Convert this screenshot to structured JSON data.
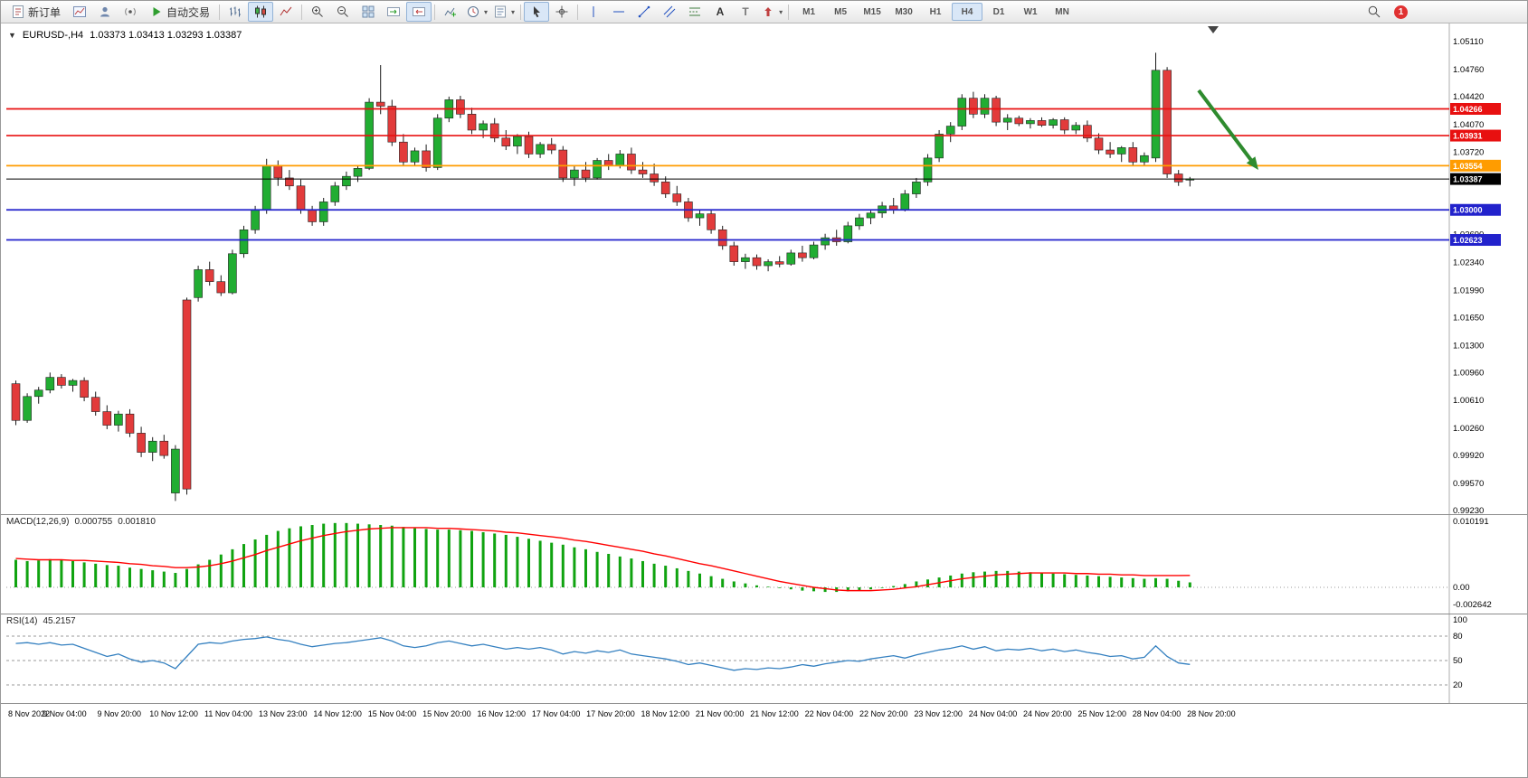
{
  "toolbar": {
    "new_order_label": "新订单",
    "autotrading_label": "自动交易",
    "timeframe_buttons": [
      "M1",
      "M5",
      "M15",
      "M30",
      "H1",
      "H4",
      "D1",
      "W1",
      "MN"
    ],
    "active_timeframe": "H4",
    "notification_badge": "1",
    "icon_glyphs": {
      "text_tool": "A",
      "text_label_tool": "T"
    },
    "icons": [
      "new-order",
      "new-chart",
      "profiles",
      "alerts",
      "autotrading",
      "bar-chart",
      "candlestick-chart",
      "line-chart",
      "zoom-in",
      "zoom-out",
      "tile-windows",
      "auto-scroll",
      "chart-shift",
      "indicators",
      "periods",
      "templates",
      "cursor",
      "crosshair",
      "vertical-line",
      "horizontal-line",
      "trendline",
      "equidistant-channel",
      "fibonacci",
      "text",
      "text-label",
      "arrows",
      "search"
    ]
  },
  "chart_header": {
    "symbol_period": "EURUSD-,H4",
    "ohlc": "1.03373 1.03413 1.03293 1.03387"
  },
  "indicators": {
    "macd": {
      "label": "MACD(12,26,9)",
      "value_main": "0.000755",
      "value_signal": "0.001810",
      "scale": [
        "0.010191",
        "0.00",
        "-0.002642"
      ]
    },
    "rsi": {
      "label": "RSI(14)",
      "value": "45.2157",
      "scale": [
        "100",
        "80",
        "50",
        "20"
      ]
    }
  },
  "chart_data": {
    "type": "candlestick",
    "symbol": "EURUSD",
    "timeframe": "H4",
    "price_axis": {
      "max": 1.0511,
      "min": 0.9923,
      "labels": [
        "1.05110",
        "1.04760",
        "1.04420",
        "1.04070",
        "1.03720",
        "1.03380",
        "1.03030",
        "1.02690",
        "1.02340",
        "1.01990",
        "1.01650",
        "1.01300",
        "1.00960",
        "1.00610",
        "1.00260",
        "0.99920",
        "0.99570",
        "0.99230"
      ]
    },
    "time_labels": [
      "8 Nov 2022",
      "9 Nov 04:00",
      "9 Nov 20:00",
      "10 Nov 12:00",
      "11 Nov 04:00",
      "13 Nov 23:00",
      "14 Nov 12:00",
      "15 Nov 04:00",
      "15 Nov 20:00",
      "16 Nov 12:00",
      "17 Nov 04:00",
      "17 Nov 20:00",
      "18 Nov 12:00",
      "21 Nov 00:00",
      "21 Nov 12:00",
      "22 Nov 04:00",
      "22 Nov 20:00",
      "23 Nov 12:00",
      "24 Nov 04:00",
      "24 Nov 20:00",
      "25 Nov 12:00",
      "28 Nov 04:00",
      "28 Nov 20:00"
    ],
    "colors": {
      "up": "#21ad32",
      "down": "#e23b3b",
      "wick": "#1a1a1a",
      "macd_hist": "#10a310",
      "macd_signal": "#ff0000",
      "rsi_line": "#3480c0",
      "resistance": "#e81010",
      "pivot": "#ff9c00",
      "support": "#2222cc"
    },
    "hlines": [
      {
        "price": 1.04266,
        "label": "1.04266",
        "color": "#e81010"
      },
      {
        "price": 1.03931,
        "label": "1.03931",
        "color": "#e81010"
      },
      {
        "price": 1.03554,
        "label": "1.03554",
        "color": "#ff9c00"
      },
      {
        "price": 1.03,
        "label": "1.03000",
        "color": "#2222cc"
      },
      {
        "price": 1.02623,
        "label": "1.02623",
        "color": "#2222cc"
      }
    ],
    "current_price": {
      "price": 1.03387,
      "label": "1.03387",
      "color": "#000000"
    },
    "candles": [
      [
        1.0082,
        1.0086,
        1.003,
        1.0036
      ],
      [
        1.0036,
        1.007,
        1.0033,
        1.0066
      ],
      [
        1.0066,
        1.0078,
        1.0057,
        1.0074
      ],
      [
        1.0074,
        1.0096,
        1.007,
        1.009
      ],
      [
        1.009,
        1.0094,
        1.0076,
        1.008
      ],
      [
        1.008,
        1.0088,
        1.0072,
        1.0086
      ],
      [
        1.0086,
        1.009,
        1.006,
        1.0065
      ],
      [
        1.0065,
        1.0072,
        1.0042,
        1.0047
      ],
      [
        1.0047,
        1.0055,
        1.0025,
        1.003
      ],
      [
        1.003,
        1.0048,
        1.0022,
        1.0044
      ],
      [
        1.0044,
        1.005,
        1.0015,
        1.002
      ],
      [
        1.002,
        1.0028,
        0.999,
        0.9996
      ],
      [
        0.9996,
        1.0015,
        0.9985,
        1.001
      ],
      [
        1.001,
        1.0018,
        0.9988,
        0.9992
      ],
      [
        0.9945,
        1.0005,
        0.9935,
        1.0
      ],
      [
        1.0187,
        1.019,
        0.9943,
        0.995
      ],
      [
        1.019,
        1.023,
        1.0185,
        1.0225
      ],
      [
        1.0225,
        1.0235,
        1.0205,
        1.021
      ],
      [
        1.021,
        1.0218,
        1.0192,
        1.0196
      ],
      [
        1.0196,
        1.025,
        1.0194,
        1.0245
      ],
      [
        1.0245,
        1.028,
        1.024,
        1.0275
      ],
      [
        1.0275,
        1.0305,
        1.027,
        1.03
      ],
      [
        1.03,
        1.0364,
        1.0295,
        1.0355
      ],
      [
        1.0355,
        1.0362,
        1.033,
        1.034
      ],
      [
        1.034,
        1.035,
        1.0325,
        1.033
      ],
      [
        1.033,
        1.0338,
        1.0295,
        1.03
      ],
      [
        1.03,
        1.0305,
        1.028,
        1.0285
      ],
      [
        1.0285,
        1.0315,
        1.028,
        1.031
      ],
      [
        1.031,
        1.0335,
        1.0305,
        1.033
      ],
      [
        1.033,
        1.0348,
        1.0325,
        1.0342
      ],
      [
        1.0342,
        1.0356,
        1.0335,
        1.0352
      ],
      [
        1.0352,
        1.044,
        1.035,
        1.0435
      ],
      [
        1.0435,
        1.04815,
        1.042,
        1.043
      ],
      [
        1.043,
        1.0438,
        1.038,
        1.0385
      ],
      [
        1.0385,
        1.0395,
        1.0355,
        1.036
      ],
      [
        1.036,
        1.0378,
        1.0356,
        1.0374
      ],
      [
        1.0374,
        1.0382,
        1.0348,
        1.0353
      ],
      [
        1.0353,
        1.042,
        1.035,
        1.0415
      ],
      [
        1.0415,
        1.0442,
        1.041,
        1.0438
      ],
      [
        1.0438,
        1.0443,
        1.0415,
        1.042
      ],
      [
        1.042,
        1.0428,
        1.0395,
        1.04
      ],
      [
        1.04,
        1.0412,
        1.039,
        1.0408
      ],
      [
        1.0408,
        1.0415,
        1.0385,
        1.039
      ],
      [
        1.039,
        1.04,
        1.0375,
        1.038
      ],
      [
        1.038,
        1.0395,
        1.037,
        1.0392
      ],
      [
        1.0392,
        1.0398,
        1.0365,
        1.037
      ],
      [
        1.037,
        1.0385,
        1.0365,
        1.0382
      ],
      [
        1.0382,
        1.039,
        1.037,
        1.0375
      ],
      [
        1.0375,
        1.038,
        1.0335,
        1.034
      ],
      [
        1.034,
        1.0355,
        1.033,
        1.035
      ],
      [
        1.035,
        1.036,
        1.0335,
        1.034
      ],
      [
        1.034,
        1.0365,
        1.0338,
        1.0362
      ],
      [
        1.0362,
        1.037,
        1.035,
        1.0355
      ],
      [
        1.0355,
        1.0375,
        1.0352,
        1.037
      ],
      [
        1.037,
        1.0378,
        1.0345,
        1.035
      ],
      [
        1.035,
        1.036,
        1.034,
        1.0345
      ],
      [
        1.0345,
        1.0358,
        1.033,
        1.0335
      ],
      [
        1.0335,
        1.0342,
        1.0315,
        1.032
      ],
      [
        1.032,
        1.033,
        1.0305,
        1.031
      ],
      [
        1.031,
        1.0315,
        1.0285,
        1.029
      ],
      [
        1.029,
        1.03,
        1.028,
        1.0295
      ],
      [
        1.0295,
        1.03,
        1.027,
        1.0275
      ],
      [
        1.0275,
        1.028,
        1.025,
        1.0255
      ],
      [
        1.0255,
        1.026,
        1.023,
        1.0235
      ],
      [
        1.0235,
        1.0245,
        1.0226,
        1.024
      ],
      [
        1.024,
        1.0244,
        1.0225,
        1.023
      ],
      [
        1.023,
        1.0238,
        1.0223,
        1.0235
      ],
      [
        1.0235,
        1.0242,
        1.0228,
        1.0232
      ],
      [
        1.0232,
        1.025,
        1.023,
        1.0246
      ],
      [
        1.0246,
        1.0255,
        1.0235,
        1.024
      ],
      [
        1.024,
        1.026,
        1.0238,
        1.0256
      ],
      [
        1.0256,
        1.027,
        1.025,
        1.0265
      ],
      [
        1.0265,
        1.0275,
        1.0255,
        1.026
      ],
      [
        1.026,
        1.0285,
        1.0258,
        1.028
      ],
      [
        1.028,
        1.0295,
        1.0275,
        1.029
      ],
      [
        1.029,
        1.03,
        1.0282,
        1.0296
      ],
      [
        1.0296,
        1.031,
        1.029,
        1.0305
      ],
      [
        1.0305,
        1.0315,
        1.0295,
        1.03
      ],
      [
        1.03,
        1.0325,
        1.0298,
        1.032
      ],
      [
        1.032,
        1.034,
        1.0315,
        1.0335
      ],
      [
        1.0335,
        1.037,
        1.033,
        1.0365
      ],
      [
        1.0365,
        1.04,
        1.036,
        1.0395
      ],
      [
        1.0395,
        1.041,
        1.0385,
        1.0405
      ],
      [
        1.0405,
        1.0445,
        1.04,
        1.044
      ],
      [
        1.044,
        1.0448,
        1.0415,
        1.042
      ],
      [
        1.042,
        1.0445,
        1.0415,
        1.044
      ],
      [
        1.044,
        1.0443,
        1.0405,
        1.041
      ],
      [
        1.041,
        1.042,
        1.04,
        1.0415
      ],
      [
        1.0415,
        1.0418,
        1.0405,
        1.0408
      ],
      [
        1.0408,
        1.0415,
        1.0402,
        1.0412
      ],
      [
        1.0412,
        1.0416,
        1.0404,
        1.0406
      ],
      [
        1.0406,
        1.0415,
        1.0402,
        1.0413
      ],
      [
        1.0413,
        1.0416,
        1.0395,
        1.04
      ],
      [
        1.04,
        1.041,
        1.0395,
        1.0406
      ],
      [
        1.0406,
        1.0412,
        1.0385,
        1.039
      ],
      [
        1.039,
        1.0396,
        1.037,
        1.0375
      ],
      [
        1.0375,
        1.0385,
        1.0365,
        1.037
      ],
      [
        1.037,
        1.038,
        1.036,
        1.0378
      ],
      [
        1.0378,
        1.0385,
        1.0355,
        1.036
      ],
      [
        1.036,
        1.0372,
        1.0355,
        1.0368
      ],
      [
        1.0365,
        1.0497,
        1.036,
        1.0475
      ],
      [
        1.0475,
        1.0479,
        1.034,
        1.0345
      ],
      [
        1.0345,
        1.035,
        1.033,
        1.0335
      ],
      [
        1.03373,
        1.03413,
        1.03293,
        1.03387
      ]
    ],
    "macd": {
      "max": 0.010191,
      "min": -0.002642,
      "histogram": [
        0.0042,
        0.004,
        0.0041,
        0.0043,
        0.0042,
        0.004,
        0.0038,
        0.0036,
        0.0034,
        0.0033,
        0.003,
        0.0028,
        0.0026,
        0.0024,
        0.0022,
        0.0028,
        0.0035,
        0.0042,
        0.005,
        0.0058,
        0.0066,
        0.0073,
        0.008,
        0.0086,
        0.009,
        0.0093,
        0.0095,
        0.0097,
        0.0098,
        0.0098,
        0.0097,
        0.0096,
        0.0095,
        0.0094,
        0.0092,
        0.009,
        0.0089,
        0.0088,
        0.0088,
        0.0087,
        0.0086,
        0.0084,
        0.0082,
        0.008,
        0.0077,
        0.0074,
        0.0071,
        0.0068,
        0.0065,
        0.0061,
        0.0058,
        0.0054,
        0.0051,
        0.0047,
        0.0044,
        0.004,
        0.0036,
        0.0033,
        0.0029,
        0.0025,
        0.0021,
        0.0017,
        0.0013,
        0.0009,
        0.0006,
        0.0003,
        0.0001,
        -0.0001,
        -0.0003,
        -0.0005,
        -0.0006,
        -0.0007,
        -0.0007,
        -0.0006,
        -0.0005,
        -0.0003,
        -0.0001,
        0.0002,
        0.0005,
        0.0009,
        0.0012,
        0.0015,
        0.0018,
        0.0021,
        0.0023,
        0.0024,
        0.0025,
        0.0025,
        0.0024,
        0.0023,
        0.0022,
        0.0021,
        0.002,
        0.0019,
        0.0018,
        0.0017,
        0.0016,
        0.0015,
        0.0014,
        0.0013,
        0.0014,
        0.0013,
        0.001,
        0.000755
      ],
      "signal": [
        0.0044,
        0.0043,
        0.0042,
        0.0042,
        0.0042,
        0.0041,
        0.0041,
        0.004,
        0.0039,
        0.0038,
        0.0036,
        0.0035,
        0.0033,
        0.0032,
        0.003,
        0.003,
        0.0031,
        0.0033,
        0.0036,
        0.004,
        0.0045,
        0.005,
        0.0056,
        0.0061,
        0.0066,
        0.0071,
        0.0075,
        0.0079,
        0.0082,
        0.0085,
        0.0087,
        0.0089,
        0.009,
        0.0091,
        0.0091,
        0.0091,
        0.0091,
        0.009,
        0.009,
        0.0089,
        0.0088,
        0.0087,
        0.0086,
        0.0084,
        0.0083,
        0.0081,
        0.0079,
        0.0077,
        0.0075,
        0.0072,
        0.007,
        0.0067,
        0.0064,
        0.0061,
        0.0058,
        0.0055,
        0.0051,
        0.0048,
        0.0044,
        0.004,
        0.0036,
        0.0033,
        0.0029,
        0.0025,
        0.0021,
        0.0017,
        0.0013,
        0.0009,
        0.0006,
        0.0003,
        0.0,
        -0.0002,
        -0.0004,
        -0.0005,
        -0.0005,
        -0.0005,
        -0.0004,
        -0.0003,
        -0.0001,
        0.0001,
        0.0004,
        0.0007,
        0.001,
        0.0013,
        0.0015,
        0.0017,
        0.0019,
        0.002,
        0.0021,
        0.0022,
        0.0022,
        0.0022,
        0.0022,
        0.0021,
        0.0021,
        0.002,
        0.002,
        0.0019,
        0.0019,
        0.0018,
        0.0018,
        0.0018,
        0.0018,
        0.00181
      ]
    },
    "rsi": {
      "levels": [
        80,
        50,
        20
      ],
      "values": [
        71,
        72,
        70,
        72,
        69,
        70,
        65,
        60,
        55,
        58,
        52,
        48,
        50,
        47,
        40,
        55,
        70,
        72,
        71,
        74,
        76,
        77,
        79,
        76,
        74,
        70,
        67,
        69,
        71,
        72,
        74,
        76,
        78,
        74,
        68,
        66,
        68,
        72,
        74,
        71,
        68,
        70,
        67,
        64,
        66,
        64,
        66,
        63,
        58,
        61,
        59,
        62,
        60,
        63,
        58,
        56,
        54,
        52,
        49,
        45,
        47,
        44,
        41,
        38,
        40,
        39,
        41,
        40,
        42,
        45,
        43,
        46,
        48,
        50,
        49,
        52,
        54,
        56,
        53,
        57,
        60,
        63,
        65,
        68,
        64,
        67,
        62,
        64,
        63,
        65,
        62,
        64,
        61,
        63,
        60,
        58,
        55,
        56,
        52,
        54,
        68,
        55,
        47,
        45.2157
      ]
    },
    "annotations": [
      {
        "type": "arrow",
        "from": [
          1324,
          74
        ],
        "to": [
          1390,
          162
        ],
        "color": "#2e8b2e"
      }
    ]
  }
}
